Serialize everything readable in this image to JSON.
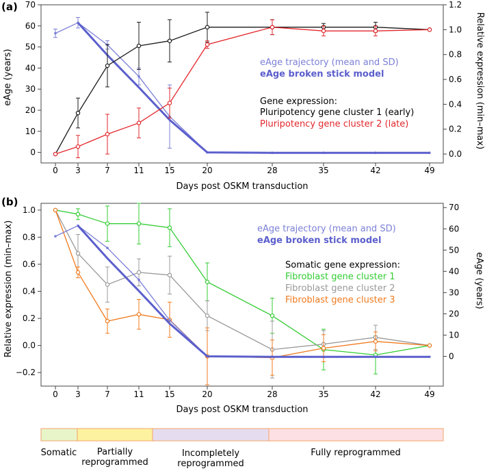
{
  "colors": {
    "black": "#1a1a1a",
    "red": "#e2272c",
    "blue_traj": "#7b7fd6",
    "blue_model": "#5b5fcc",
    "green": "#33cc33",
    "gray": "#999999",
    "orange": "#f07a1e",
    "stage_somatic": "#e8f5c8",
    "stage_partial": "#fdf2a0",
    "stage_incomplete": "#e6dcef",
    "stage_full": "#fde0e3",
    "stage_border": "#f2a46a"
  },
  "chart_data": [
    {
      "panel_label": "(a)",
      "type": "line",
      "x": [
        0,
        3,
        7,
        11,
        15,
        20,
        28,
        35,
        42,
        49
      ],
      "xticks": [
        "0",
        "3",
        "7",
        "11",
        "15",
        "20",
        "28",
        "35",
        "42",
        "49"
      ],
      "xlabel": "Days post OSKM transduction",
      "ylabel_left": "eAge (years)",
      "ylabel_right": "Relative expression (min–max)",
      "ylim_left": [
        -5,
        70
      ],
      "yticks_left": [
        "0",
        "10",
        "20",
        "30",
        "40",
        "50",
        "60",
        "70"
      ],
      "ylim_right": [
        -0.0714,
        1.2
      ],
      "yticks_right": [
        "0.0",
        "0.2",
        "0.4",
        "0.6",
        "0.8",
        "1.0",
        "1.2"
      ],
      "legend": {
        "traj": "eAge trajectory (mean and SD)",
        "model": "eAge broken stick model",
        "header": "Gene expression:",
        "items": [
          "Pluripotency gene cluster 1 (early)",
          "Pluripotency gene cluster 2 (late)"
        ]
      },
      "series": [
        {
          "name": "eAge trajectory (mean and SD)",
          "axis": "left",
          "color_key": "blue_traj",
          "values": [
            56.5,
            61.5,
            51,
            36,
            17,
            0,
            -0.2,
            -0.2,
            -0.2,
            -0.2
          ],
          "sd": [
            2,
            2.5,
            2,
            4,
            15,
            0,
            0,
            0,
            0,
            0
          ],
          "markers": "small"
        },
        {
          "name": "eAge broken stick model",
          "axis": "left",
          "color_key": "blue_model",
          "values": [
            null,
            61.5,
            46.1,
            30.8,
            15.4,
            0,
            -0.2,
            -0.2,
            -0.2,
            -0.2
          ],
          "thick": true
        },
        {
          "name": "Pluripotency gene cluster 1 (early)",
          "axis": "right",
          "color_key": "black",
          "values": [
            0,
            0.33,
            0.71,
            0.87,
            0.91,
            1.02,
            1.02,
            1.02,
            1.02,
            1.0
          ],
          "sd": [
            0,
            0.12,
            0.17,
            0.19,
            0.17,
            0.12,
            0.06,
            0.03,
            0.04,
            0
          ],
          "markers": "open"
        },
        {
          "name": "Pluripotency gene cluster 2 (late)",
          "axis": "right",
          "color_key": "red",
          "values": [
            0,
            0.06,
            0.16,
            0.25,
            0.41,
            0.88,
            1.02,
            0.99,
            0.99,
            1.0
          ],
          "sd": [
            0,
            0.09,
            0.16,
            0.12,
            0.12,
            0.03,
            0.06,
            0.04,
            0.04,
            0
          ],
          "markers": "open"
        }
      ]
    },
    {
      "panel_label": "(b)",
      "type": "line",
      "x": [
        0,
        3,
        7,
        11,
        15,
        20,
        28,
        35,
        42,
        49
      ],
      "xticks": [
        "0",
        "3",
        "7",
        "11",
        "15",
        "20",
        "28",
        "35",
        "42",
        "49"
      ],
      "xlabel": "Days post OSKM transduction",
      "ylabel_left": "Relative expression (min–max)",
      "ylabel_right": "eAge (years)",
      "ylim_left": [
        -0.3,
        1.05
      ],
      "yticks_left": [
        "−0.2",
        "0.0",
        "0.2",
        "0.4",
        "0.6",
        "0.8",
        "1.0"
      ],
      "ytick_left_values": [
        -0.2,
        0,
        0.2,
        0.4,
        0.6,
        0.8,
        1.0
      ],
      "ylim_right": [
        -14,
        72
      ],
      "yticks_right": [
        "0",
        "10",
        "20",
        "30",
        "40",
        "50",
        "60",
        "70"
      ],
      "legend": {
        "traj": "eAge trajectory (mean and SD)",
        "model": "eAge broken stick model",
        "header": "Somatic gene expression:",
        "items": [
          "Fibroblast gene cluster 1",
          "Fibroblast gene cluster 2",
          "Fibroblast gene cluster 3"
        ]
      },
      "series": [
        {
          "name": "Fibroblast gene cluster 1",
          "axis": "left",
          "color_key": "green",
          "values": [
            1.0,
            0.97,
            0.9,
            0.9,
            0.87,
            0.47,
            0.22,
            -0.03,
            -0.07,
            0.0
          ],
          "sd": [
            0,
            0.04,
            0.13,
            0.15,
            0.14,
            0.14,
            0.13,
            0.15,
            0.14,
            0
          ],
          "markers": "open"
        },
        {
          "name": "Fibroblast gene cluster 2",
          "axis": "left",
          "color_key": "gray",
          "values": [
            1.0,
            0.68,
            0.45,
            0.54,
            0.52,
            0.22,
            -0.03,
            0.01,
            0.06,
            0.0
          ],
          "sd": [
            0,
            0.14,
            0.13,
            0.1,
            0.14,
            0.11,
            0.21,
            0.1,
            0.09,
            0
          ],
          "markers": "open"
        },
        {
          "name": "Fibroblast gene cluster 3",
          "axis": "left",
          "color_key": "orange",
          "values": [
            1.0,
            0.54,
            0.18,
            0.23,
            0.19,
            -0.08,
            -0.09,
            -0.02,
            0.03,
            0.0
          ],
          "sd": [
            0,
            0.04,
            0.09,
            0.11,
            0.13,
            0.21,
            0.13,
            0.1,
            0.07,
            0
          ],
          "markers": "open"
        },
        {
          "name": "eAge trajectory (mean and SD)",
          "axis": "right",
          "color_key": "blue_traj",
          "values": [
            56.5,
            61.5,
            51,
            36,
            17,
            0,
            -0.2,
            -0.2,
            -0.2,
            -0.2
          ],
          "markers": "dots"
        },
        {
          "name": "eAge broken stick model",
          "axis": "right",
          "color_key": "blue_model",
          "values": [
            null,
            61.5,
            46.1,
            30.8,
            15.4,
            0,
            -0.2,
            -0.2,
            -0.2,
            -0.2
          ],
          "thick": true
        }
      ]
    }
  ],
  "stages": {
    "labels": [
      "Somatic",
      "Partially\nreprogrammed",
      "Incompletely\nreprogrammed",
      "Fully reprogrammed"
    ]
  }
}
